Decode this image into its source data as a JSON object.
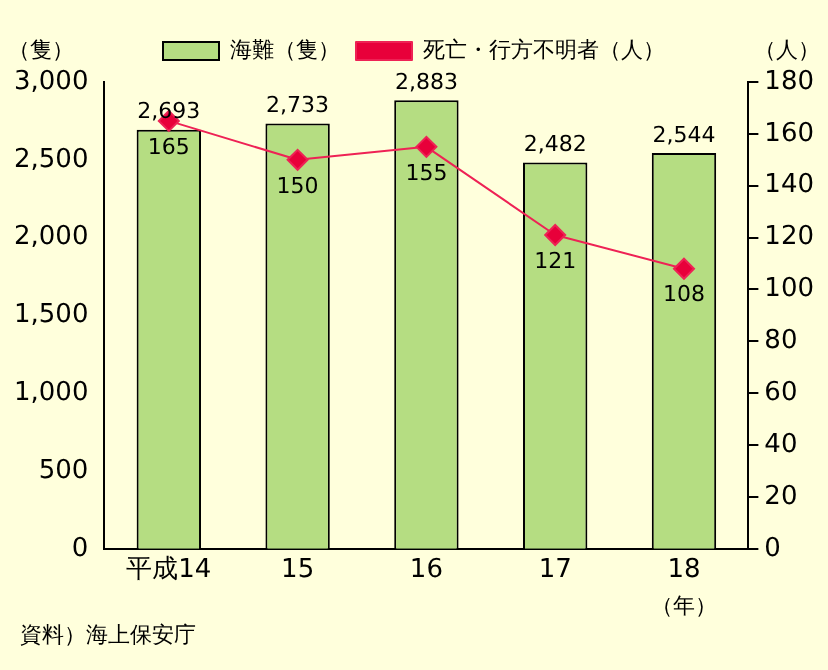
{
  "chart_data": {
    "type": "bar",
    "categories": [
      "平成14",
      "15",
      "16",
      "17",
      "18"
    ],
    "series": [
      {
        "name": "海難（隻）",
        "color": "#b5dd82",
        "values": [
          2693,
          2733,
          2883,
          2482,
          2544
        ],
        "value_labels": [
          "2,693",
          "2,733",
          "2,883",
          "2,482",
          "2,544"
        ]
      },
      {
        "name": "死亡・行方不明者（人）",
        "type": "line",
        "axis": "y2",
        "color": "#ee2255",
        "values": [
          165,
          150,
          155,
          121,
          108
        ],
        "value_labels": [
          "165",
          "150",
          "155",
          "121",
          "108"
        ]
      }
    ],
    "ylabel": "（隻）",
    "y2label": "（人）",
    "xlabel": "（年）",
    "ylim": [
      0,
      3000
    ],
    "yticks": [
      {
        "value": 0,
        "label": "0"
      },
      {
        "value": 500,
        "label": "500"
      },
      {
        "value": 1000,
        "label": "1,000"
      },
      {
        "value": 1500,
        "label": "1,500"
      },
      {
        "value": 2000,
        "label": "2,000"
      },
      {
        "value": 2500,
        "label": "2,500"
      },
      {
        "value": 3000,
        "label": "3,000"
      }
    ],
    "y2lim": [
      0,
      180
    ],
    "y2ticks": [
      0,
      20,
      40,
      60,
      80,
      100,
      120,
      140,
      160,
      180
    ],
    "legend": "top",
    "grid": false,
    "marker": "diamond",
    "annotations": [
      "資料）海上保安庁"
    ]
  }
}
